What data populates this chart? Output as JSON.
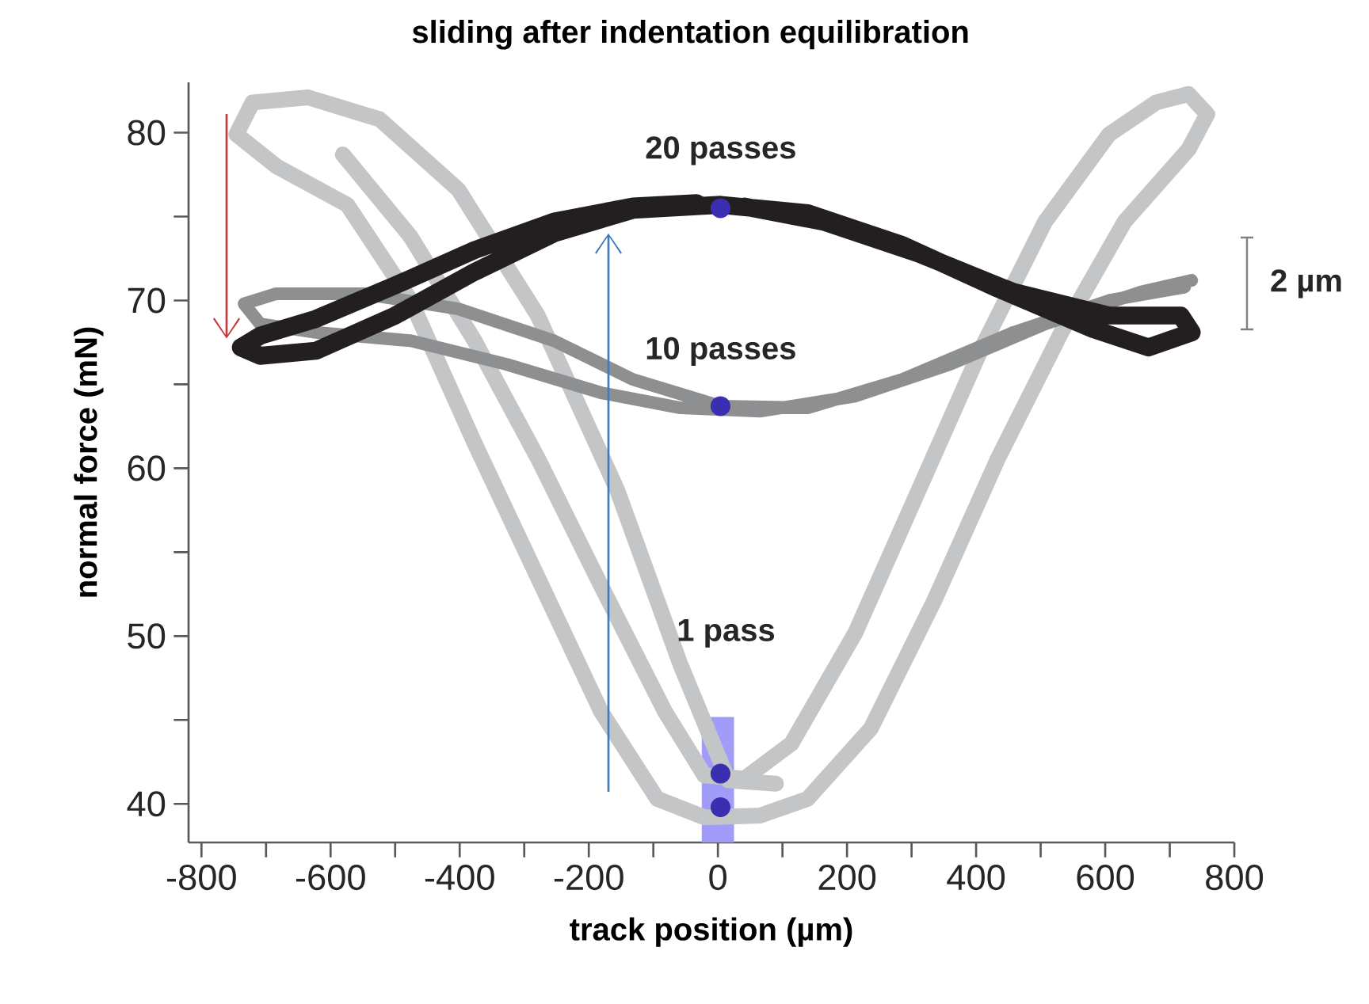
{
  "chart_data": {
    "type": "line",
    "title": "**sliding after indentation equilibration**",
    "xlabel": "**track position (µm)**",
    "ylabel": "**normal force (mN)**",
    "annotations": [
      "**2 µm**"
    ],
    "xlim": [
      -820,
      800
    ],
    "ylim": [
      37.7,
      83
    ],
    "xticks": [
      -800,
      {
        "value": -700,
        "label": null
      },
      -600,
      {
        "value": -500,
        "label": null
      },
      -400,
      {
        "value": -300,
        "label": null
      },
      -200,
      {
        "value": -100,
        "label": null
      },
      0,
      {
        "value": 100,
        "label": null
      },
      200,
      {
        "value": 300,
        "label": null
      },
      400,
      {
        "value": 500,
        "label": null
      },
      600,
      {
        "value": 700,
        "label": null
      },
      800
    ],
    "yticks": [
      40,
      {
        "value": 45,
        "label": null
      },
      50,
      {
        "value": 55,
        "label": null
      },
      60,
      {
        "value": 65,
        "label": null
      },
      70,
      {
        "value": 75,
        "label": null
      },
      80
    ],
    "bands": [
      {
        "axis": "x",
        "from": -25,
        "to": 25,
        "color": "#a09cf7"
      }
    ],
    "series": [
      {
        "name": "**1 pass**",
        "color": "#c4c5c7",
        "x": [
          -581,
          -476,
          -377,
          -279,
          -181,
          -82,
          -21,
          41,
          114,
          213,
          311,
          409,
          507,
          606,
          679,
          729,
          758,
          729,
          630,
          532,
          434,
          335,
          237,
          139,
          65,
          -21,
          -94,
          -181,
          -279,
          -377,
          -476,
          -574,
          -684,
          -746,
          -721,
          -635,
          -524,
          -402,
          -279,
          -156,
          -58,
          16,
          90
        ],
        "values": [
          78.7,
          73.8,
          67.6,
          60.6,
          53.0,
          45.5,
          41.7,
          41.5,
          43.6,
          50.2,
          58.7,
          67.2,
          74.7,
          79.9,
          81.8,
          82.3,
          81.1,
          79.0,
          74.7,
          68.1,
          60.6,
          52.1,
          44.5,
          40.3,
          39.3,
          39.2,
          40.3,
          45.5,
          53.5,
          61.5,
          70.0,
          75.7,
          78.0,
          79.9,
          81.8,
          82.1,
          80.8,
          76.6,
          69.1,
          58.7,
          48.3,
          41.4,
          41.2
        ]
      },
      {
        "name": "**10 passes**",
        "color": "#8e8f91",
        "x": [
          734,
          655,
          507,
          360,
          213,
          65,
          -58,
          -181,
          -328,
          -476,
          -623,
          -709,
          -734,
          -684,
          -549,
          -402,
          -254,
          -132,
          4,
          139,
          286,
          458,
          606,
          723
        ],
        "values": [
          71.2,
          70.5,
          68.6,
          66.2,
          64.3,
          63.4,
          63.6,
          64.5,
          66.2,
          67.6,
          68.1,
          68.6,
          69.8,
          70.4,
          70.4,
          69.5,
          67.6,
          65.3,
          63.7,
          63.6,
          65.3,
          68.1,
          70.0,
          70.8
        ]
      },
      {
        "name": "**20 passes**",
        "color": "#231f20",
        "x": [
          -33,
          -132,
          -254,
          -377,
          -500,
          -623,
          -709,
          -739,
          -709,
          -623,
          -500,
          -377,
          -254,
          -132,
          4,
          139,
          286,
          434,
          581,
          667,
          734,
          717,
          606,
          458,
          311,
          163,
          41
        ],
        "values": [
          75.8,
          75.6,
          74.7,
          73.0,
          70.9,
          68.9,
          67.9,
          67.2,
          66.7,
          67.0,
          69.1,
          71.7,
          74.0,
          75.4,
          75.7,
          75.2,
          73.3,
          70.7,
          68.3,
          67.2,
          68.1,
          69.1,
          69.1,
          70.5,
          72.8,
          74.7,
          75.6
        ]
      },
      {
        "type": "scatter",
        "color": "#3a2fb0",
        "marker": "circle",
        "x": [
          4,
          4,
          4,
          4
        ],
        "values": [
          75.5,
          63.7,
          41.8,
          39.8
        ]
      }
    ]
  }
}
